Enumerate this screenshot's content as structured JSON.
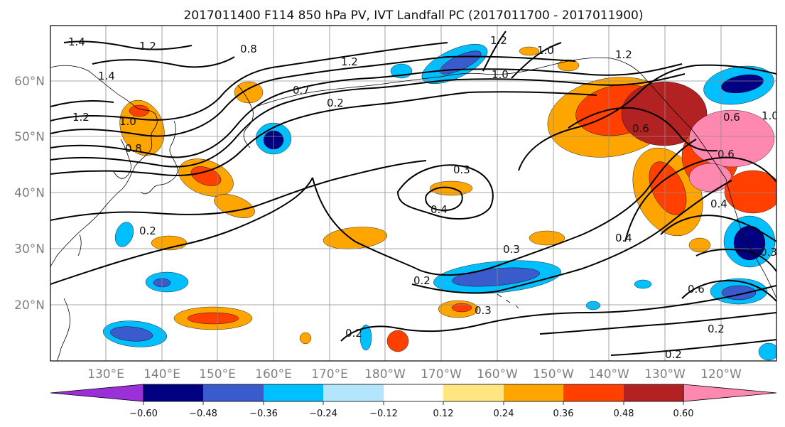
{
  "title": "2017011400 F114 850 hPa PV, IVT Landfall PC (2017011700 - 2017011900)",
  "map": {
    "lon_range": [
      120,
      -110
    ],
    "lat_range": [
      10,
      70
    ],
    "lon_ticks": [
      "130°E",
      "140°E",
      "150°E",
      "160°E",
      "170°E",
      "180°W",
      "170°W",
      "160°W",
      "150°W",
      "140°W",
      "130°W",
      "120°W"
    ],
    "lat_ticks": [
      "20°N",
      "30°N",
      "40°N",
      "50°N",
      "60°N"
    ],
    "grid": true
  },
  "colorbar": {
    "tick_labels": [
      "−0.60",
      "−0.48",
      "−0.36",
      "−0.24",
      "−0.12",
      "0.12",
      "0.24",
      "0.36",
      "0.48",
      "0.60"
    ],
    "colors": [
      "#9b30d9",
      "#000080",
      "#3a5bcc",
      "#00bfff",
      "#b3e5fc",
      "#ffffff",
      "#ffe680",
      "#ffa500",
      "#ff4000",
      "#b22222",
      "#ff88b0"
    ],
    "extend": "both"
  },
  "contour_labels": [
    {
      "text": "1.4"
    },
    {
      "text": "1.2"
    },
    {
      "text": "0.8"
    },
    {
      "text": "1.4"
    },
    {
      "text": "1.2"
    },
    {
      "text": "1.0"
    },
    {
      "text": "0.8"
    },
    {
      "text": "0.7"
    },
    {
      "text": "0.2"
    },
    {
      "text": "1.2"
    },
    {
      "text": "1.2"
    },
    {
      "text": "1.0"
    },
    {
      "text": "1.0"
    },
    {
      "text": "1.2"
    },
    {
      "text": "0.6"
    },
    {
      "text": "0.6"
    },
    {
      "text": "0.6"
    },
    {
      "text": "1.0"
    },
    {
      "text": "0.3"
    },
    {
      "text": "0.4"
    },
    {
      "text": "0.2"
    },
    {
      "text": "0.4"
    },
    {
      "text": "0.3"
    },
    {
      "text": "0.2"
    },
    {
      "text": "0.3"
    },
    {
      "text": "0.2"
    },
    {
      "text": "0.6"
    },
    {
      "text": "0.2"
    },
    {
      "text": "0.2"
    },
    {
      "text": "0.4"
    },
    {
      "text": "0.3"
    }
  ]
}
